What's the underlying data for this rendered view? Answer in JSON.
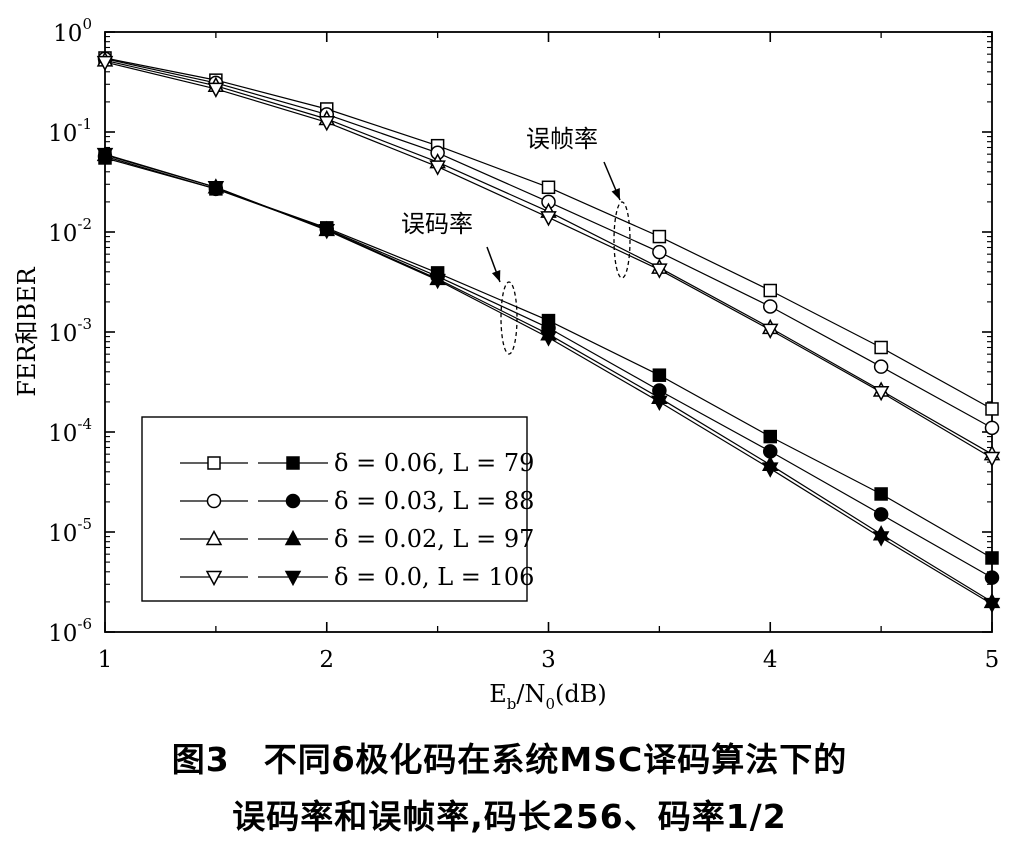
{
  "chart_data": {
    "type": "line",
    "title": "",
    "xlabel": "E_b/N_0(dB)",
    "ylabel": "FER和BER",
    "yscale": "log",
    "xlim": [
      1,
      5
    ],
    "ylim": [
      1e-06,
      1
    ],
    "x_ticks": [
      "1",
      "2",
      "3",
      "4",
      "5"
    ],
    "y_ticks": [
      {
        "base": "10",
        "exp": "0"
      },
      {
        "base": "10",
        "exp": "-1"
      },
      {
        "base": "10",
        "exp": "-2"
      },
      {
        "base": "10",
        "exp": "-3"
      },
      {
        "base": "10",
        "exp": "-4"
      },
      {
        "base": "10",
        "exp": "-5"
      },
      {
        "base": "10",
        "exp": "-6"
      }
    ],
    "annotations": [
      "误帧率",
      "误码率"
    ],
    "legend": {
      "position": "bottom-left",
      "entries": [
        "δ = 0.06, L = 79",
        "δ = 0.03, L = 88",
        "δ = 0.02, L = 97",
        "δ = 0.0, L = 106"
      ]
    },
    "series": [
      {
        "group": "FER",
        "marker": "square-open",
        "x": [
          1,
          1.5,
          2,
          2.5,
          3,
          3.5,
          4,
          4.5,
          5
        ],
        "y": [
          0.55,
          0.33,
          0.17,
          0.073,
          0.028,
          0.009,
          0.0026,
          0.0007,
          0.00017
        ]
      },
      {
        "group": "FER",
        "marker": "circle-open",
        "x": [
          1,
          1.5,
          2,
          2.5,
          3,
          3.5,
          4,
          4.5,
          5
        ],
        "y": [
          0.54,
          0.31,
          0.15,
          0.062,
          0.02,
          0.0063,
          0.0018,
          0.00045,
          0.00011
        ]
      },
      {
        "group": "FER",
        "marker": "triangle-up-open",
        "x": [
          1,
          1.5,
          2,
          2.5,
          3,
          3.5,
          4,
          4.5,
          5
        ],
        "y": [
          0.52,
          0.29,
          0.135,
          0.05,
          0.016,
          0.0044,
          0.0011,
          0.00026,
          6e-05
        ]
      },
      {
        "group": "FER",
        "marker": "triangle-down-open",
        "x": [
          1,
          1.5,
          2,
          2.5,
          3,
          3.5,
          4,
          4.5,
          5
        ],
        "y": [
          0.5,
          0.27,
          0.125,
          0.045,
          0.014,
          0.0042,
          0.00105,
          0.00025,
          5.5e-05
        ]
      },
      {
        "group": "BER",
        "marker": "square-filled",
        "x": [
          1,
          1.5,
          2,
          2.5,
          3,
          3.5,
          4,
          4.5,
          5
        ],
        "y": [
          0.055,
          0.027,
          0.011,
          0.0039,
          0.0013,
          0.00037,
          9e-05,
          2.4e-05,
          5.5e-06
        ]
      },
      {
        "group": "BER",
        "marker": "circle-filled",
        "x": [
          1,
          1.5,
          2,
          2.5,
          3,
          3.5,
          4,
          4.5,
          5
        ],
        "y": [
          0.057,
          0.027,
          0.0107,
          0.0036,
          0.0011,
          0.00026,
          6.4e-05,
          1.5e-05,
          3.5e-06
        ]
      },
      {
        "group": "BER",
        "marker": "triangle-up-filled",
        "x": [
          1,
          1.5,
          2,
          2.5,
          3,
          3.5,
          4,
          4.5,
          5
        ],
        "y": [
          0.059,
          0.028,
          0.0105,
          0.0034,
          0.00095,
          0.00022,
          4.7e-05,
          9.5e-06,
          2e-06
        ]
      },
      {
        "group": "BER",
        "marker": "triangle-down-filled",
        "x": [
          1,
          1.5,
          2,
          2.5,
          3,
          3.5,
          4,
          4.5,
          5
        ],
        "y": [
          0.06,
          0.028,
          0.0104,
          0.0033,
          0.00088,
          0.0002,
          4.3e-05,
          8.8e-06,
          1.9e-06
        ]
      }
    ]
  },
  "caption": {
    "line1": "图3　不同δ极化码在系统MSC译码算法下的",
    "line2": "误码率和误帧率,码长256、码率1/2"
  }
}
